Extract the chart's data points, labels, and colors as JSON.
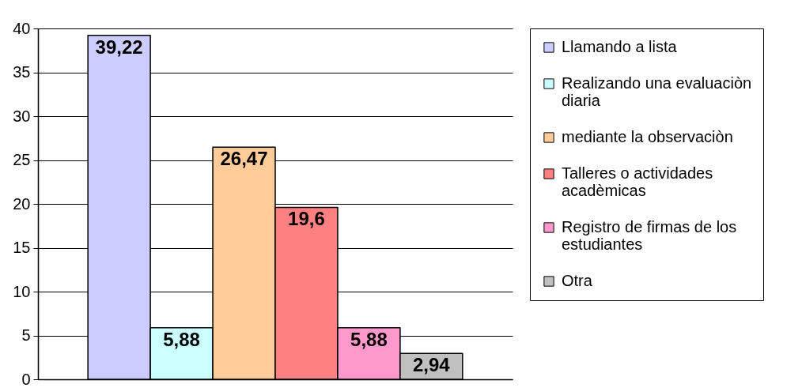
{
  "chart_data": {
    "type": "bar",
    "categories": [
      null
    ],
    "series": [
      {
        "name": "Llamando a lista",
        "color": "#ccccff",
        "values": [
          39.22
        ],
        "value_labels": [
          "39,22"
        ]
      },
      {
        "name": "Realizando una evaluaciòn diaria",
        "color": "#ccffff",
        "values": [
          5.88
        ],
        "value_labels": [
          "5,88"
        ]
      },
      {
        "name": "mediante la observaciòn",
        "color": "#ffcc99",
        "values": [
          26.47
        ],
        "value_labels": [
          "26,47"
        ]
      },
      {
        "name": "Talleres o actividades acadèmicas",
        "color": "#ff8080",
        "values": [
          19.6
        ],
        "value_labels": [
          "19,6"
        ]
      },
      {
        "name": "Registro de firmas de los estudiantes",
        "color": "#ff99cc",
        "values": [
          5.88
        ],
        "value_labels": [
          "5,88"
        ]
      },
      {
        "name": "Otra",
        "color": "#c0c0c0",
        "values": [
          2.94
        ],
        "value_labels": [
          "2,94"
        ]
      }
    ],
    "ylim": [
      0,
      40
    ],
    "yticks": [
      0,
      5,
      10,
      15,
      20,
      25,
      30,
      35,
      40
    ],
    "grid": "y",
    "legend": "right",
    "tick_labels": "y"
  }
}
